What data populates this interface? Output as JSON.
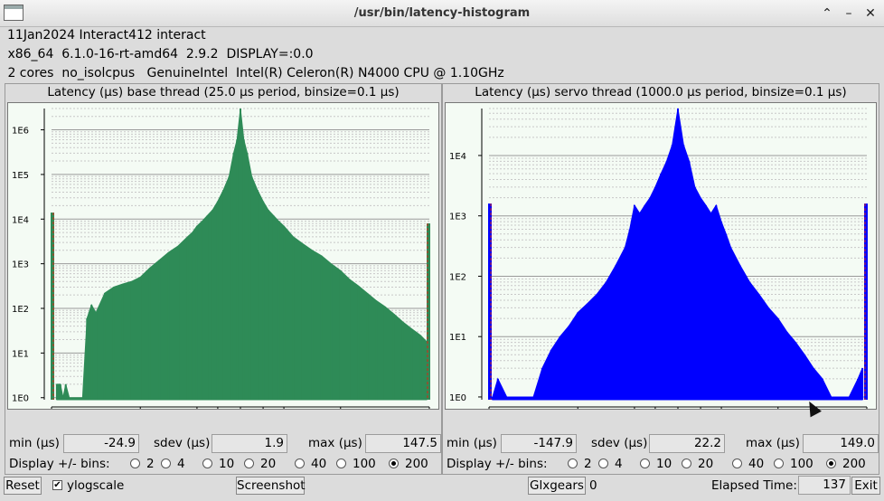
{
  "window": {
    "title": "/usr/bin/latency-histogram"
  },
  "info": {
    "line1": "11Jan2024 Interact412 interact",
    "line2": " x86_64  6.1.0-16-rt-amd64  2.9.2  DISPLAY=:0.0",
    "line3": " 2 cores  no_isolcpus   GenuineIntel  Intel(R) Celeron(R) N4000 CPU @ 1.10GHz"
  },
  "base": {
    "title": "Latency (µs) base thread (25.0 µs period, binsize=0.1 µs)",
    "min_label": "min (µs)",
    "min": "-24.9",
    "sdev_label": "sdev (µs)",
    "sdev": "1.9",
    "max_label": "max (µs)",
    "max": "147.5"
  },
  "servo": {
    "title": "Latency (µs) servo thread (1000.0 µs period, binsize=0.1 µs)",
    "min_label": "min (µs)",
    "min": "-147.9",
    "sdev_label": "sdev (µs)",
    "sdev": "22.2",
    "max_label": "max (µs)",
    "max": "149.0"
  },
  "bins": {
    "label": "Display +/- bins:",
    "options": [
      "2",
      "4",
      "10",
      "20",
      "40",
      "100",
      "200"
    ],
    "selected": "200"
  },
  "bottom": {
    "reset": "Reset",
    "ylogscale": "ylogscale",
    "ylogscale_checked": true,
    "screenshot": "Screenshot",
    "glxgears": "Glxgears",
    "glxgears_value": "0",
    "elapsed_label": "Elapsed Time:",
    "elapsed_value": "137",
    "exit": "Exit"
  },
  "chart_data": [
    {
      "type": "bar",
      "name": "base thread histogram",
      "color": "#2e8b57",
      "xscale": "piecewise",
      "xticks": [
        "-20",
        "-10",
        "-4",
        "-2",
        "0",
        "2",
        "4",
        "10",
        "20"
      ],
      "yscale": "log",
      "yticks": [
        "1E0",
        "1E1",
        "1E2",
        "1E3",
        "1E4",
        "1E5",
        "1E6"
      ],
      "ylim": [
        0.9,
        3000000
      ],
      "x": [
        -20,
        -19.4,
        -19,
        -18.7,
        -18.4,
        -18,
        -17.5,
        -17,
        -16.5,
        -16,
        -15.5,
        -15,
        -14,
        -13,
        -12,
        -11,
        -10,
        -9,
        -8,
        -7,
        -6,
        -5,
        -4.5,
        -4,
        -3.5,
        -3,
        -2.5,
        -2,
        -1.5,
        -1,
        -0.6,
        -0.3,
        0,
        0.3,
        0.6,
        1,
        1.5,
        2,
        2.5,
        3,
        3.5,
        4,
        5,
        6,
        7,
        8,
        9,
        10,
        11,
        12,
        13,
        14,
        15,
        16,
        17,
        18,
        19,
        19.7,
        20
      ],
      "y": [
        14000,
        2,
        2,
        1,
        2,
        1,
        1,
        1,
        1,
        60,
        120,
        80,
        220,
        300,
        350,
        400,
        500,
        800,
        1200,
        1800,
        2500,
        4000,
        5000,
        7000,
        9000,
        12000,
        16000,
        25000,
        45000,
        90000,
        300000,
        600000,
        3000000,
        600000,
        300000,
        90000,
        45000,
        25000,
        16000,
        12000,
        9000,
        7000,
        4000,
        2800,
        2000,
        1500,
        1000,
        700,
        450,
        320,
        220,
        150,
        110,
        75,
        50,
        35,
        25,
        18,
        8000
      ],
      "outliers": [
        -20,
        20
      ]
    },
    {
      "type": "bar",
      "name": "servo thread histogram",
      "color": "#0000ff",
      "xscale": "piecewise",
      "xticks": [
        "-20",
        "-10",
        "-4",
        "-2",
        "0",
        "2",
        "4",
        "10",
        "20"
      ],
      "yscale": "log",
      "yticks": [
        "1E0",
        "1E1",
        "1E2",
        "1E3",
        "1E4"
      ],
      "ylim": [
        0.9,
        60000
      ],
      "x": [
        -20,
        -19.6,
        -19,
        -18,
        -17,
        -16,
        -15,
        -14,
        -13,
        -12,
        -11,
        -10,
        -9,
        -8,
        -7,
        -6,
        -5,
        -4.5,
        -4,
        -3.5,
        -3,
        -2.5,
        -2,
        -1.5,
        -1,
        -0.5,
        0,
        0.5,
        1,
        1.5,
        2,
        2.5,
        3,
        3.5,
        4,
        4.5,
        5,
        6,
        7,
        8,
        9,
        10,
        11,
        12,
        13,
        14,
        15,
        16,
        17,
        18,
        19,
        19.5,
        20
      ],
      "y": [
        1600,
        1,
        2,
        1,
        1,
        1,
        1,
        3,
        6,
        10,
        15,
        25,
        35,
        50,
        80,
        150,
        300,
        600,
        1500,
        1100,
        1500,
        2000,
        3000,
        5000,
        8000,
        15000,
        60000,
        15000,
        8000,
        3000,
        2000,
        1500,
        1100,
        1500,
        800,
        500,
        300,
        150,
        80,
        50,
        30,
        20,
        12,
        8,
        5,
        3,
        2,
        1,
        1,
        1,
        2,
        3,
        1600
      ],
      "outliers": [
        -20,
        20
      ]
    }
  ]
}
